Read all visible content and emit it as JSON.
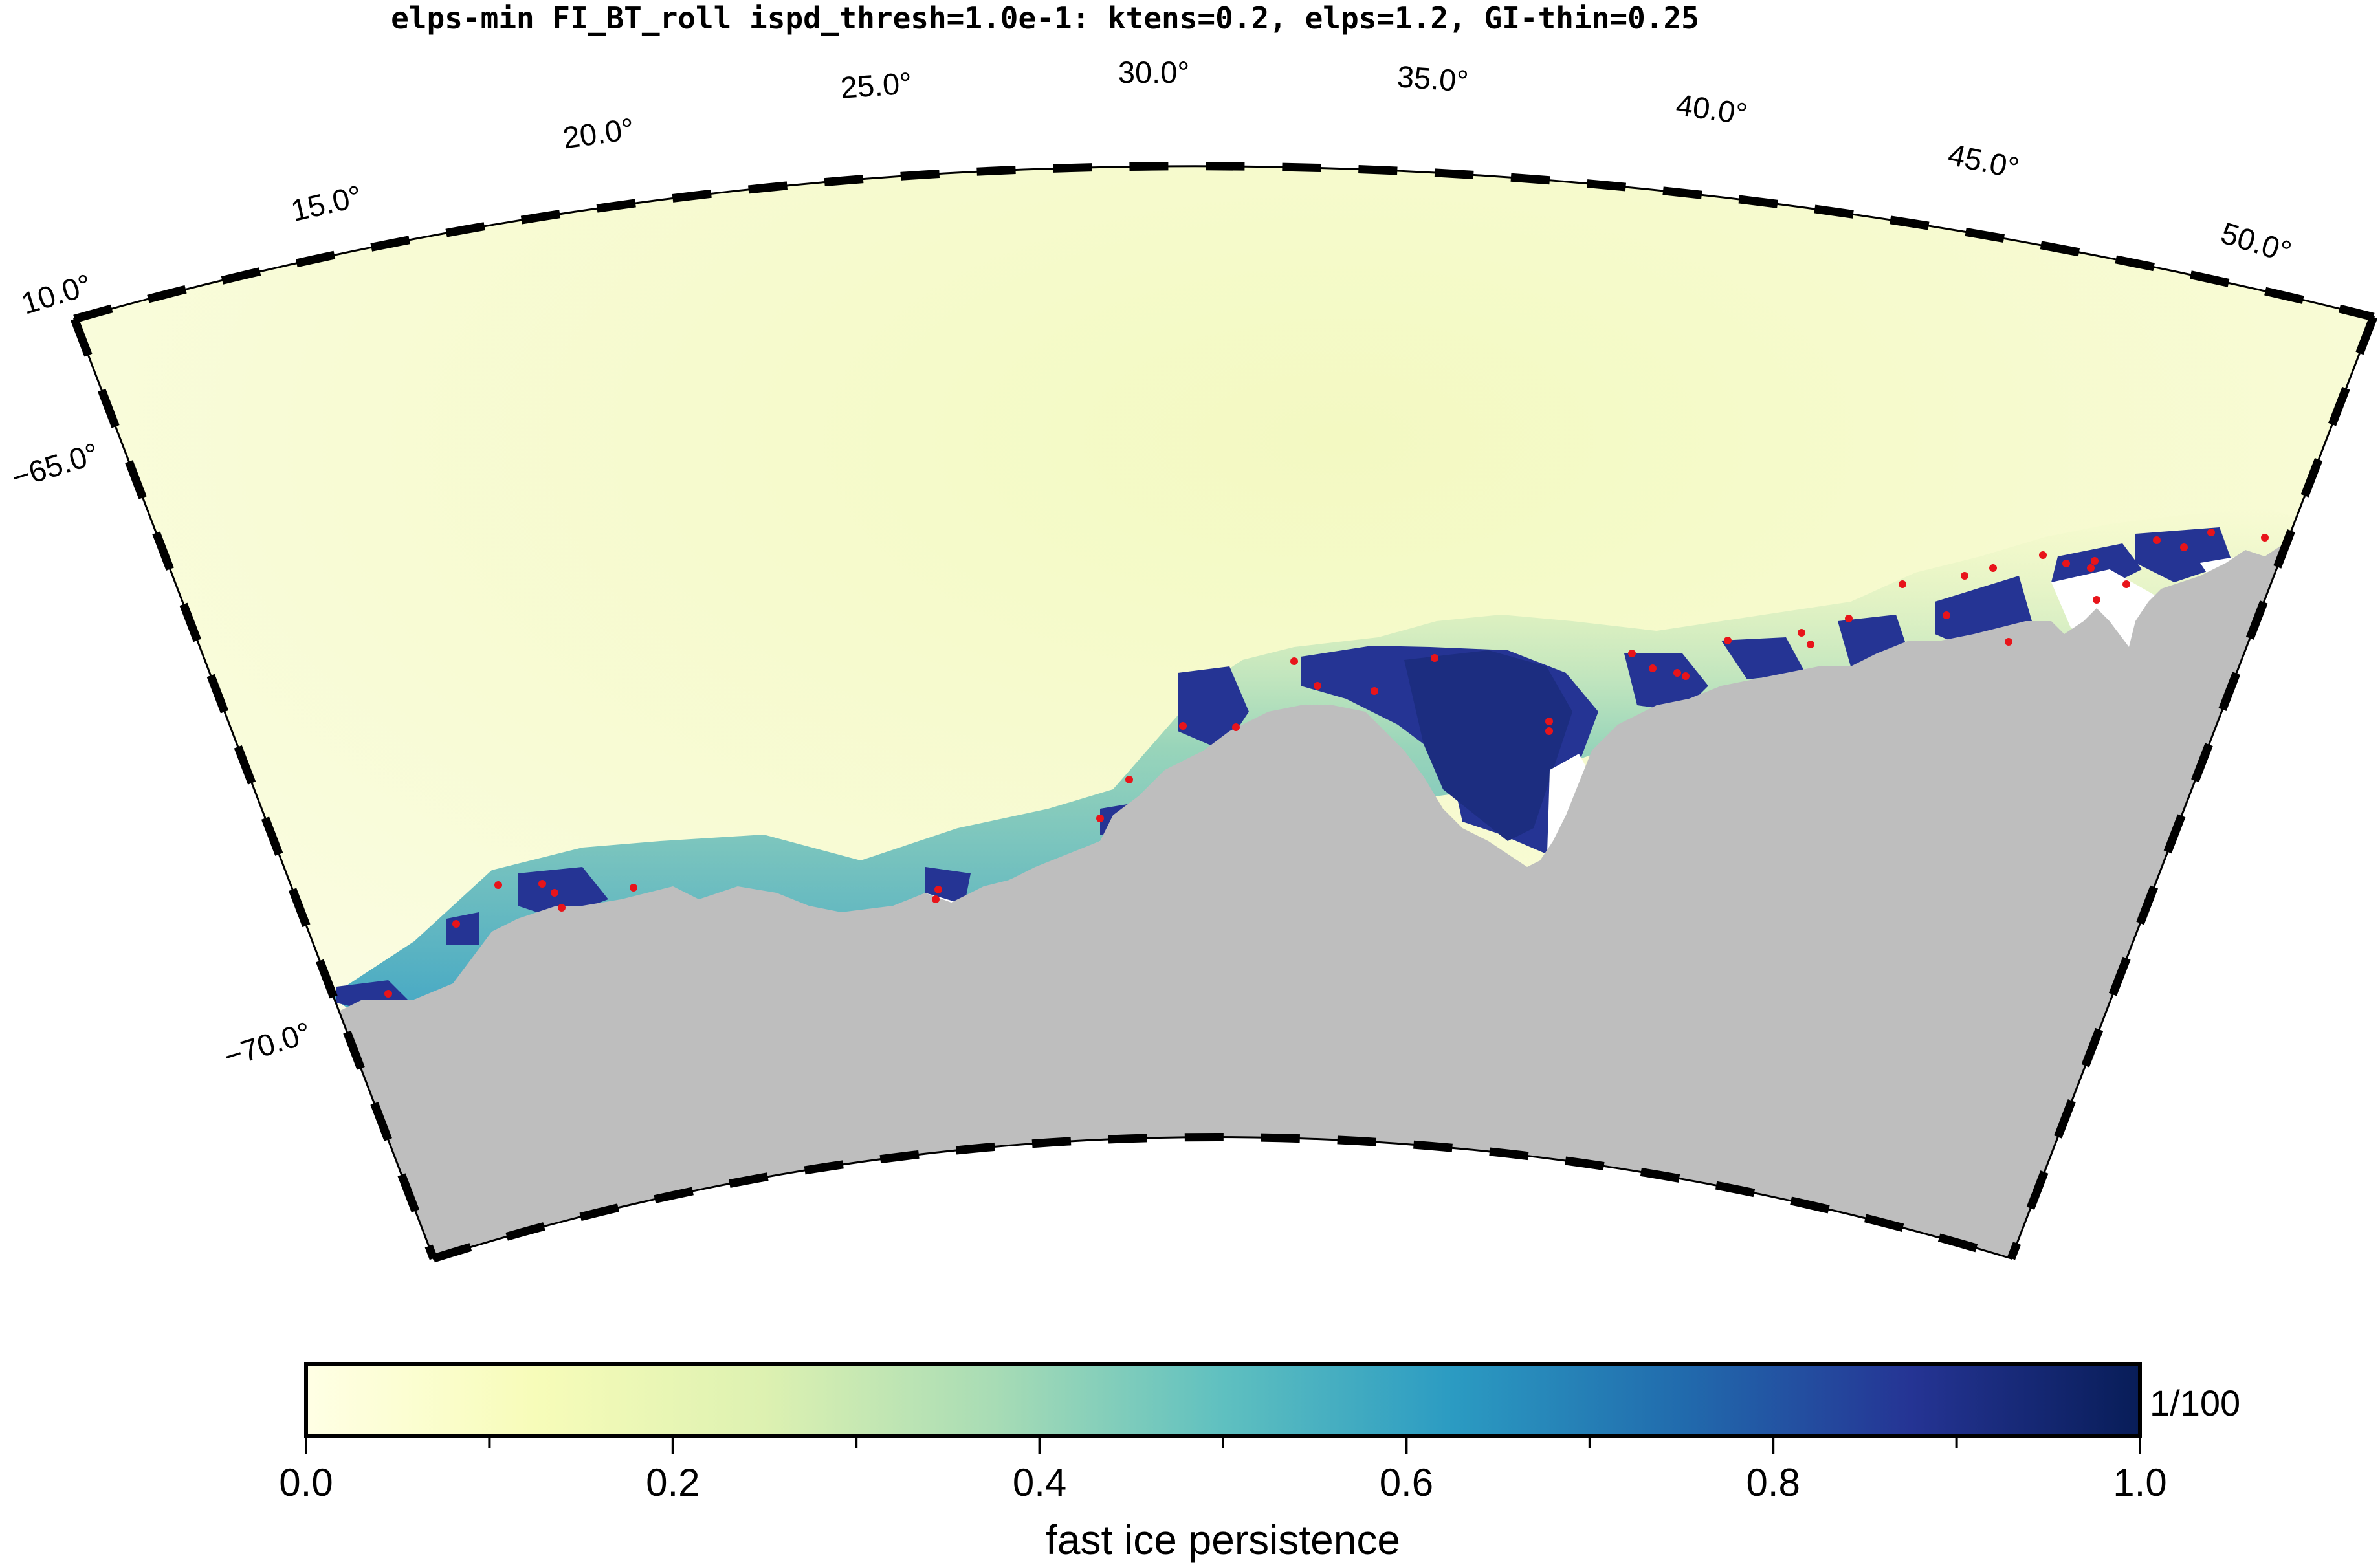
{
  "title": "elps-min FI_BT_roll ispd_thresh=1.0e-1: ktens=0.2, elps=1.2, GI-thin=0.25",
  "map": {
    "lon_labels": [
      "10.0°",
      "15.0°",
      "20.0°",
      "25.0°",
      "30.0°",
      "35.0°",
      "40.0°",
      "45.0°",
      "50.0°"
    ],
    "lat_labels": [
      "−65.0°",
      "−70.0°"
    ],
    "land_color": "#bebebe",
    "grounded_iceberg_marker_color": "#e8141a"
  },
  "colorbar": {
    "title": "fast ice persistence",
    "unit_label": "1/100",
    "tick_labels": [
      "0.0",
      "0.2",
      "0.4",
      "0.6",
      "0.8",
      "1.0"
    ],
    "range": [
      0.0,
      1.0
    ],
    "stops": [
      {
        "v": 0.0,
        "c": "#ffffe5"
      },
      {
        "v": 0.125,
        "c": "#f7fcb9"
      },
      {
        "v": 0.25,
        "c": "#ddf1b1"
      },
      {
        "v": 0.375,
        "c": "#a8dcb5"
      },
      {
        "v": 0.5,
        "c": "#5fc0c0"
      },
      {
        "v": 0.625,
        "c": "#2b9bc2"
      },
      {
        "v": 0.75,
        "c": "#216bad"
      },
      {
        "v": 0.875,
        "c": "#253494"
      },
      {
        "v": 1.0,
        "c": "#081d58"
      }
    ]
  }
}
